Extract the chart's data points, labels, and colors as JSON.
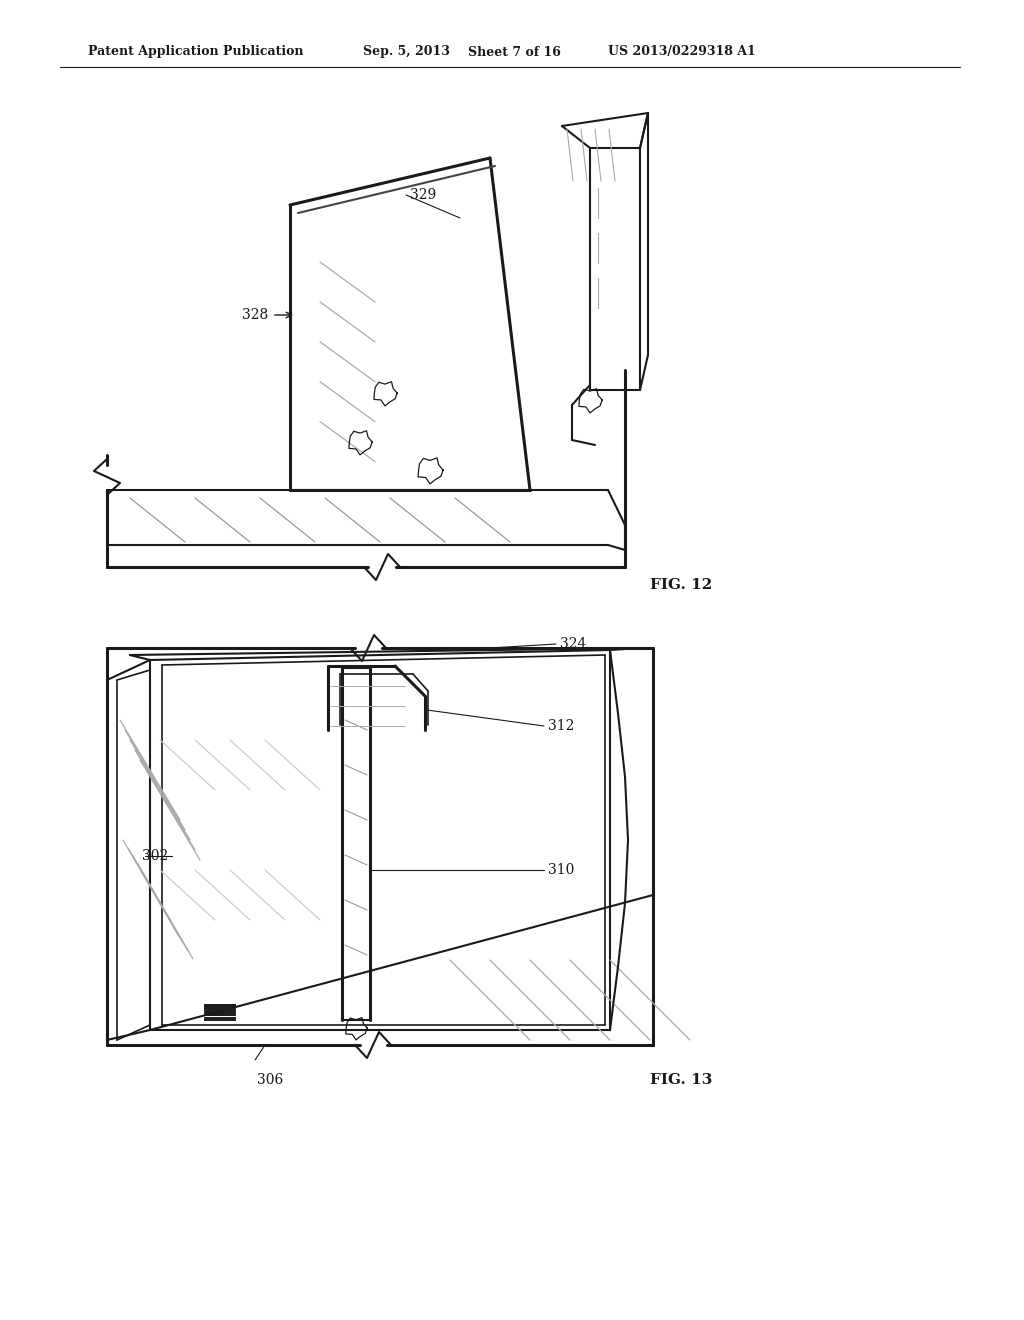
{
  "background_color": "#ffffff",
  "header_text": "Patent Application Publication",
  "header_date": "Sep. 5, 2013",
  "header_sheet": "Sheet 7 of 16",
  "header_patent": "US 2013/0229318 A1",
  "fig12_label": "FIG. 12",
  "fig13_label": "FIG. 13",
  "label_328": "328",
  "label_329": "329",
  "label_302": "302",
  "label_306": "306",
  "label_310": "310",
  "label_312": "312",
  "label_324": "324"
}
